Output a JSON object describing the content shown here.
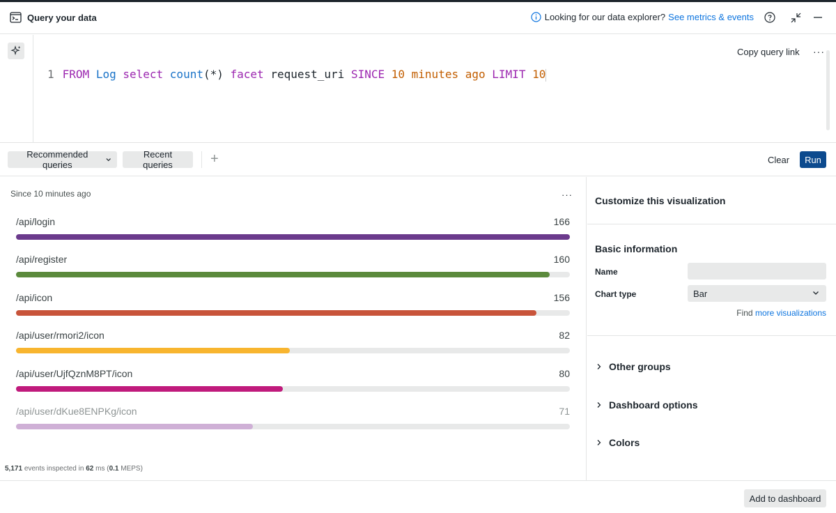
{
  "header": {
    "title": "Query your data",
    "info_text": "Looking for our data explorer?",
    "info_link": "See metrics & events"
  },
  "editor": {
    "line_number": "1",
    "tokens": {
      "from": "FROM",
      "event": "Log",
      "select": "select",
      "fn": "count",
      "args": "(*)",
      "facet": "facet",
      "attr": "request_uri",
      "since": "SINCE",
      "since_num": "10",
      "minutes": "minutes",
      "ago": "ago",
      "limit": "LIMIT",
      "limit_num": "10"
    },
    "copy_link_label": "Copy query link",
    "more_label": "···"
  },
  "toolbar": {
    "recommended_label": "Recommended queries",
    "recent_label": "Recent queries",
    "plus_label": "+",
    "clear_label": "Clear",
    "run_label": "Run"
  },
  "chart": {
    "since_label": "Since 10 minutes ago",
    "more_label": "···",
    "stats": {
      "events": "5,171",
      "events_text": "events inspected in",
      "ms": "62",
      "ms_text": "ms (",
      "meps": "0.1",
      "meps_text": "MEPS)"
    }
  },
  "chart_data": {
    "type": "bar",
    "categories": [
      "/api/login",
      "/api/register",
      "/api/icon",
      "/api/user/rmori2/icon",
      "/api/user/UjfQznM8PT/icon",
      "/api/user/dKue8ENPKg/icon"
    ],
    "values": [
      166,
      160,
      156,
      82,
      80,
      71
    ],
    "colors": [
      "#6b3a8c",
      "#5b8a3c",
      "#c8543a",
      "#f8b52f",
      "#c01a7c",
      "#cfb0d6"
    ],
    "xlim": [
      0,
      166
    ],
    "orientation": "horizontal"
  },
  "customize": {
    "title": "Customize this visualization",
    "basic_info": "Basic information",
    "name_label": "Name",
    "name_value": "",
    "chart_type_label": "Chart type",
    "chart_type_value": "Bar",
    "find_text": "Find",
    "find_link": "more visualizations",
    "sections": [
      "Other groups",
      "Dashboard options",
      "Colors"
    ]
  },
  "footer": {
    "add_label": "Add to dashboard"
  },
  "icons": {
    "terminal": "terminal-icon",
    "info": "info-icon",
    "help": "help-icon",
    "collapse": "collapse-icon",
    "minimize": "minimize-icon",
    "sparkle": "sparkle-icon",
    "chevron": "chevron-down-icon",
    "arrow": "chevron-right-icon"
  }
}
